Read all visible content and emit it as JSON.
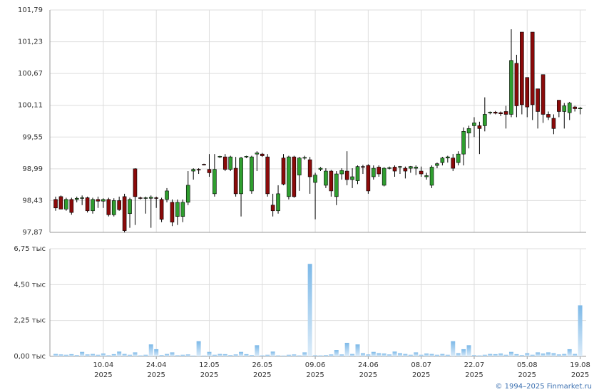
{
  "chart_data": {
    "type": "candlestick",
    "credit": "© 1994–2025 Finmarket.ru",
    "categories": [
      null,
      null,
      null,
      null,
      null,
      null,
      null,
      null,
      null,
      "10.04",
      null,
      null,
      null,
      null,
      null,
      null,
      null,
      null,
      null,
      "24.04",
      null,
      null,
      null,
      null,
      null,
      null,
      null,
      null,
      null,
      "12.05",
      null,
      null,
      null,
      null,
      null,
      null,
      null,
      null,
      null,
      "26.05",
      null,
      null,
      null,
      null,
      null,
      null,
      null,
      null,
      null,
      "09.06",
      null,
      null,
      null,
      null,
      null,
      null,
      null,
      null,
      null,
      "24.06",
      null,
      null,
      null,
      null,
      null,
      null,
      null,
      null,
      null,
      "08.07",
      null,
      null,
      null,
      null,
      null,
      null,
      null,
      null,
      null,
      "22.07",
      null,
      null,
      null,
      null,
      null,
      null,
      null,
      null,
      null,
      "05.08",
      null,
      null,
      null,
      null,
      null,
      null,
      null,
      null,
      null,
      "19.08"
    ],
    "category_years": [
      null,
      null,
      null,
      null,
      null,
      null,
      null,
      null,
      null,
      "2025",
      null,
      null,
      null,
      null,
      null,
      null,
      null,
      null,
      null,
      "2025",
      null,
      null,
      null,
      null,
      null,
      null,
      null,
      null,
      null,
      "2025",
      null,
      null,
      null,
      null,
      null,
      null,
      null,
      null,
      null,
      "2025",
      null,
      null,
      null,
      null,
      null,
      null,
      null,
      null,
      null,
      "2025",
      null,
      null,
      null,
      null,
      null,
      null,
      null,
      null,
      null,
      "2025",
      null,
      null,
      null,
      null,
      null,
      null,
      null,
      null,
      null,
      "2025",
      null,
      null,
      null,
      null,
      null,
      null,
      null,
      null,
      null,
      "2025",
      null,
      null,
      null,
      null,
      null,
      null,
      null,
      null,
      null,
      "2025",
      null,
      null,
      null,
      null,
      null,
      null,
      null,
      null,
      null,
      "2025"
    ],
    "open": [
      98.45,
      98.5,
      98.28,
      98.45,
      98.45,
      98.47,
      98.48,
      98.25,
      98.45,
      98.42,
      98.45,
      98.18,
      98.43,
      98.5,
      98.2,
      98.99,
      98.48,
      98.47,
      98.47,
      98.48,
      98.45,
      98.45,
      98.4,
      98.15,
      98.15,
      98.4,
      98.95,
      98.98,
      99.07,
      98.98,
      98.55,
      99.2,
      99.2,
      98.98,
      99.0,
      98.55,
      99.2,
      98.6,
      99.25,
      99.25,
      99.2,
      98.35,
      98.25,
      99.18,
      98.5,
      99.2,
      98.88,
      99.18,
      99.15,
      98.75,
      98.98,
      98.7,
      98.95,
      98.5,
      98.9,
      98.95,
      98.8,
      98.78,
      99.03,
      99.05,
      98.85,
      99.02,
      98.7,
      99.0,
      99.02,
      99.02,
      99.0,
      99.0,
      99.0,
      98.95,
      98.85,
      98.7,
      99.05,
      99.1,
      99.18,
      99.18,
      99.1,
      99.25,
      99.62,
      99.75,
      99.75,
      99.75,
      99.98,
      99.99,
      99.98,
      100.0,
      99.95,
      100.85,
      101.4,
      100.6,
      101.4,
      100.4,
      100.65,
      99.95,
      99.88,
      100.2,
      100.0,
      99.98,
      100.08,
      100.05
    ],
    "high": [
      98.5,
      98.52,
      98.48,
      98.48,
      98.5,
      98.52,
      98.5,
      98.48,
      98.5,
      98.47,
      98.48,
      98.47,
      98.5,
      98.55,
      98.48,
      99.0,
      98.5,
      98.5,
      98.52,
      98.5,
      98.48,
      98.65,
      98.45,
      98.45,
      98.45,
      98.95,
      99.0,
      99.0,
      99.08,
      99.25,
      99.25,
      99.22,
      99.25,
      99.22,
      99.2,
      99.2,
      99.22,
      99.22,
      99.3,
      99.27,
      99.25,
      98.55,
      98.7,
      99.25,
      99.22,
      99.22,
      99.2,
      99.22,
      99.2,
      98.92,
      99.02,
      99.0,
      98.97,
      98.95,
      99.0,
      99.3,
      99.0,
      99.05,
      99.06,
      99.07,
      99.05,
      99.05,
      99.02,
      99.03,
      99.05,
      99.04,
      99.03,
      99.04,
      99.05,
      99.03,
      98.92,
      99.05,
      99.1,
      99.2,
      99.22,
      99.25,
      99.3,
      99.72,
      99.75,
      99.9,
      99.82,
      100.25,
      100.0,
      100.01,
      100.0,
      100.1,
      101.45,
      101.0,
      101.4,
      100.6,
      101.4,
      100.4,
      100.65,
      100.0,
      99.95,
      100.2,
      100.15,
      100.17,
      100.1,
      100.08
    ],
    "low": [
      98.25,
      98.28,
      98.25,
      98.18,
      98.4,
      98.35,
      98.22,
      98.2,
      98.3,
      98.3,
      98.15,
      98.15,
      98.25,
      97.87,
      97.95,
      98.0,
      98.45,
      98.2,
      97.95,
      98.3,
      98.05,
      98.4,
      97.98,
      98.0,
      98.05,
      98.35,
      98.8,
      98.9,
      99.05,
      98.85,
      98.5,
      99.18,
      98.95,
      98.95,
      98.5,
      98.15,
      99.18,
      98.55,
      98.95,
      99.2,
      98.5,
      98.15,
      98.2,
      98.7,
      98.45,
      98.48,
      98.6,
      99.15,
      98.55,
      98.1,
      98.95,
      98.65,
      98.5,
      98.35,
      98.8,
      98.7,
      98.65,
      98.72,
      98.9,
      98.55,
      98.8,
      98.85,
      98.68,
      98.98,
      98.85,
      98.9,
      98.82,
      98.92,
      98.88,
      98.85,
      98.8,
      98.65,
      99.0,
      99.05,
      99.1,
      98.95,
      99.05,
      99.05,
      99.35,
      99.55,
      99.25,
      99.65,
      99.95,
      99.95,
      99.92,
      99.7,
      99.9,
      99.9,
      99.95,
      99.9,
      99.85,
      99.7,
      99.8,
      99.85,
      99.6,
      99.9,
      99.7,
      99.85,
      100.0,
      99.95
    ],
    "close": [
      98.3,
      98.28,
      98.45,
      98.22,
      98.47,
      98.48,
      98.25,
      98.45,
      98.42,
      98.45,
      98.18,
      98.43,
      98.27,
      97.9,
      98.45,
      98.5,
      98.47,
      98.48,
      98.49,
      98.47,
      98.1,
      98.6,
      98.05,
      98.4,
      98.4,
      98.7,
      98.98,
      98.97,
      99.06,
      98.92,
      98.98,
      99.21,
      98.98,
      99.2,
      98.55,
      99.18,
      99.21,
      99.2,
      99.27,
      99.22,
      98.55,
      98.25,
      98.55,
      98.72,
      99.2,
      98.5,
      99.18,
      99.19,
      98.85,
      98.88,
      99.0,
      98.95,
      98.6,
      98.9,
      98.96,
      98.8,
      98.85,
      99.03,
      99.02,
      98.6,
      99.0,
      98.9,
      99.0,
      99.01,
      98.95,
      99.03,
      98.95,
      99.03,
      99.02,
      98.9,
      98.87,
      99.02,
      99.08,
      99.18,
      99.2,
      99.0,
      99.25,
      99.65,
      99.7,
      99.8,
      99.7,
      99.95,
      99.99,
      99.97,
      99.96,
      99.95,
      100.9,
      100.1,
      100.12,
      100.08,
      100.12,
      100.0,
      99.95,
      99.9,
      99.7,
      100.0,
      100.1,
      100.15,
      100.05,
      100.06
    ],
    "volume": [
      0.15,
      0.12,
      0.1,
      0.14,
      0.08,
      0.28,
      0.12,
      0.15,
      0.1,
      0.18,
      0.07,
      0.14,
      0.3,
      0.15,
      0.1,
      0.25,
      0.06,
      0.1,
      0.75,
      0.45,
      0.08,
      0.15,
      0.25,
      0.07,
      0.1,
      0.12,
      0.05,
      0.95,
      0.05,
      0.28,
      0.1,
      0.15,
      0.14,
      0.08,
      0.12,
      0.28,
      0.14,
      0.08,
      0.7,
      0.06,
      0.1,
      0.3,
      0.06,
      0.05,
      0.1,
      0.12,
      0.06,
      0.25,
      5.8,
      0.07,
      0.06,
      0.08,
      0.12,
      0.4,
      0.12,
      0.85,
      0.15,
      0.75,
      0.2,
      0.12,
      0.28,
      0.2,
      0.18,
      0.12,
      0.3,
      0.2,
      0.15,
      0.1,
      0.25,
      0.1,
      0.18,
      0.15,
      0.1,
      0.15,
      0.1,
      0.95,
      0.2,
      0.45,
      0.7,
      0.08,
      0.06,
      0.1,
      0.15,
      0.14,
      0.18,
      0.1,
      0.28,
      0.14,
      0.08,
      0.2,
      0.1,
      0.25,
      0.18,
      0.25,
      0.2,
      0.12,
      0.15,
      0.45,
      0.15,
      3.2
    ],
    "up_color": "#2f9e2f",
    "down_color": "#8b0a0a",
    "volume_color": "#7db9e8",
    "ylim": [
      97.87,
      101.79
    ],
    "yticks": [
      {
        "value": 97.87,
        "label": "97,87"
      },
      {
        "value": 98.43,
        "label": "98,43"
      },
      {
        "value": 98.99,
        "label": "98,99"
      },
      {
        "value": 99.55,
        "label": "99,55"
      },
      {
        "value": 100.11,
        "label": "100,11"
      },
      {
        "value": 100.67,
        "label": "100,67"
      },
      {
        "value": 101.23,
        "label": "101,23"
      },
      {
        "value": 101.79,
        "label": "101,79"
      }
    ],
    "y2lim": [
      0,
      6.75
    ],
    "y2ticks": [
      {
        "value": 0,
        "label": "0,00 тыс"
      },
      {
        "value": 2.25,
        "label": "2,25 тыс"
      },
      {
        "value": 4.5,
        "label": "4,50 тыс"
      },
      {
        "value": 6.75,
        "label": "6,75 тыс"
      }
    ],
    "grid": true
  }
}
